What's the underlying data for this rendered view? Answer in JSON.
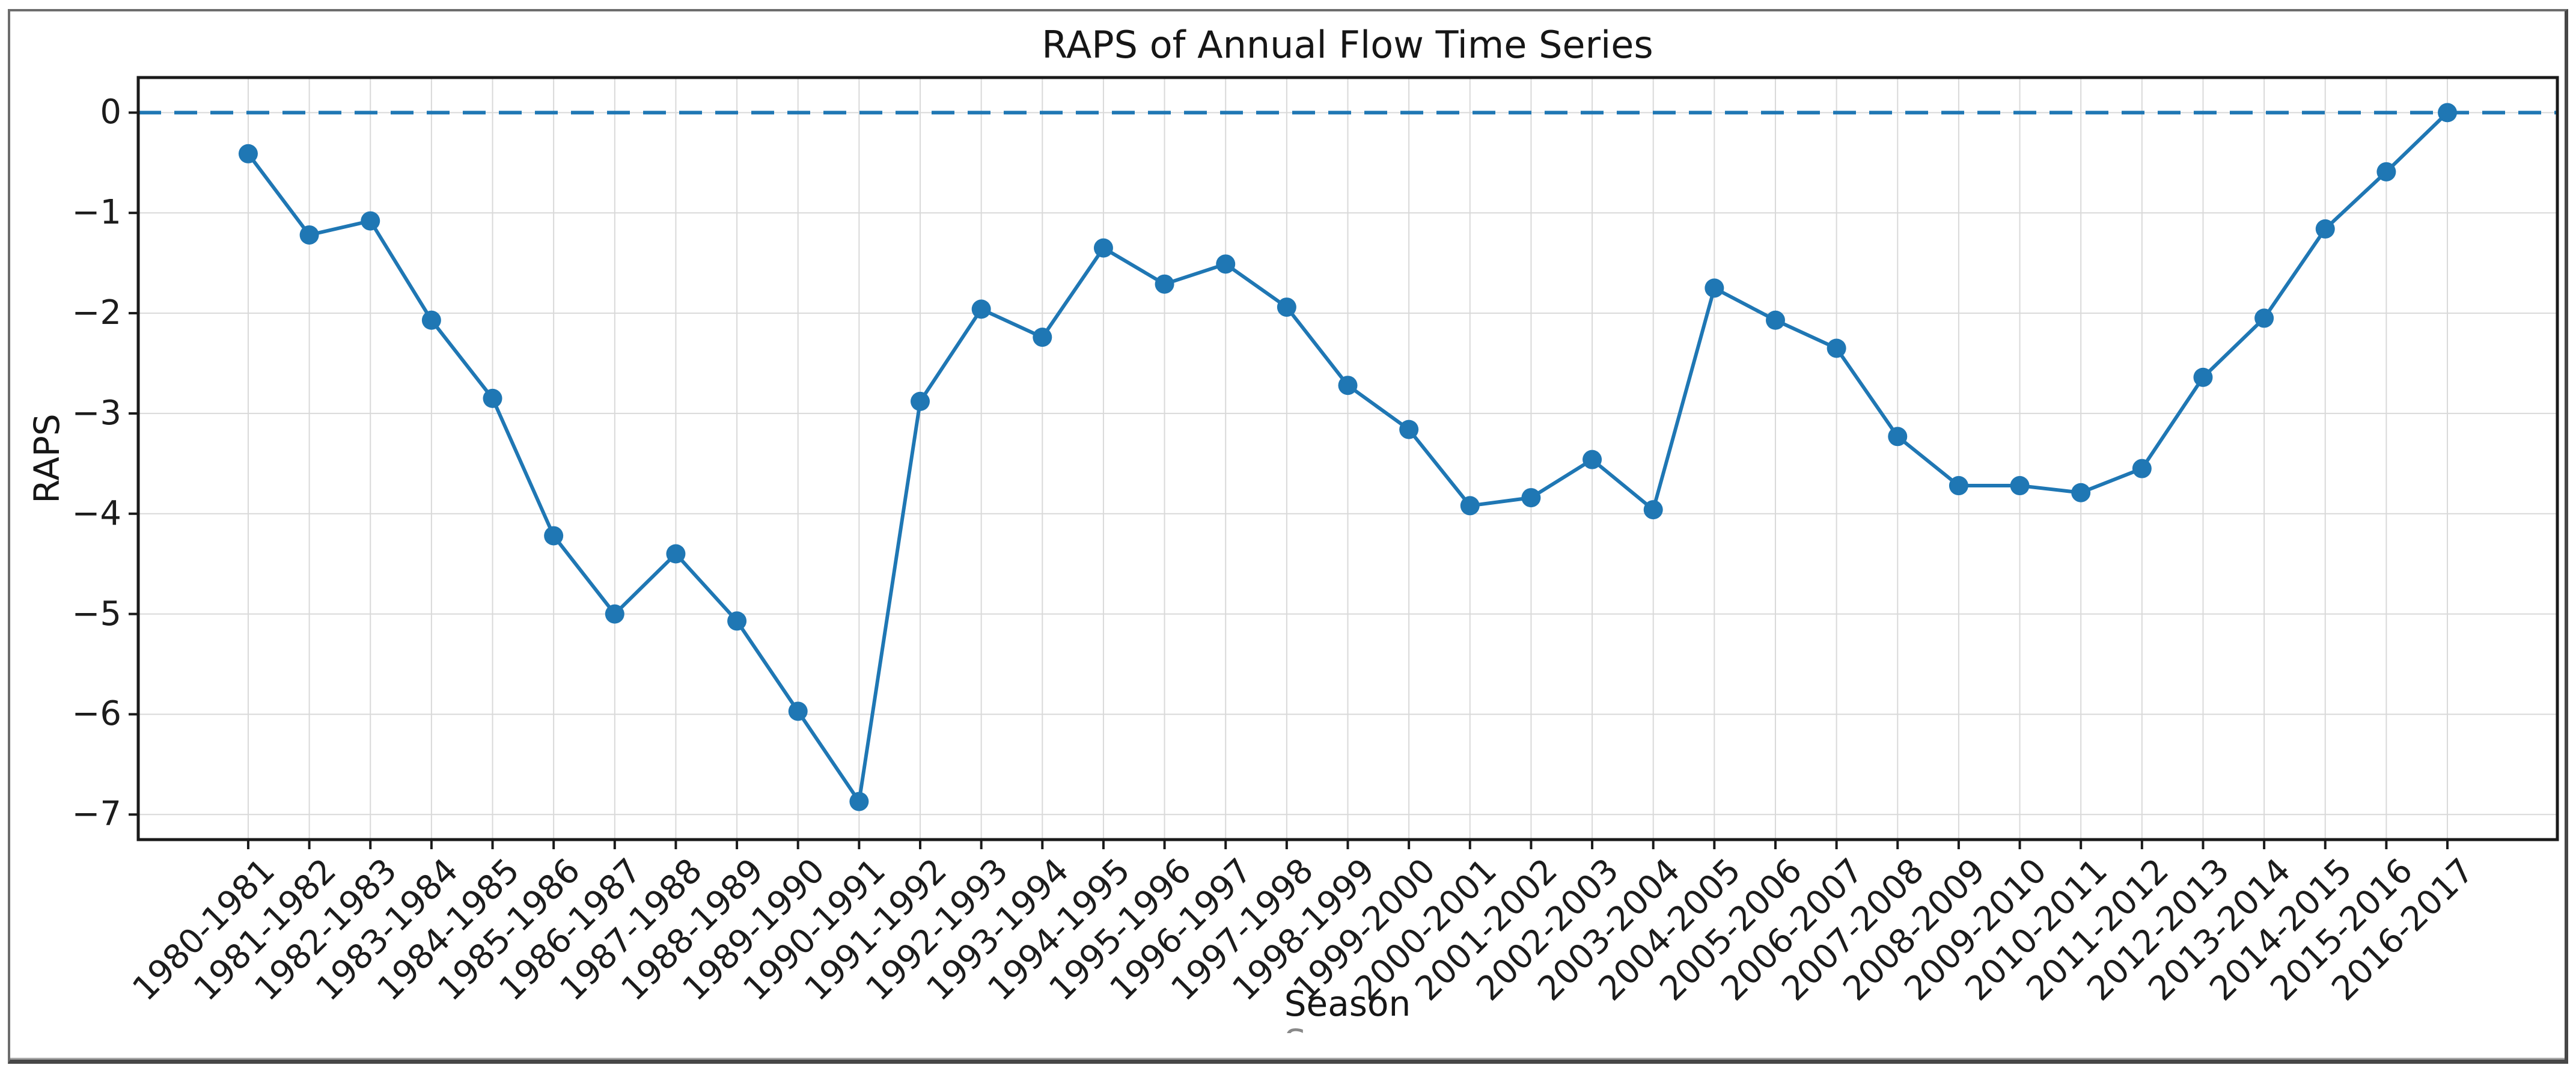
{
  "chart_data": {
    "type": "line",
    "title": "RAPS of Annual Flow Time Series",
    "xlabel": "Season",
    "ylabel": "RAPS",
    "categories": [
      "1980-1981",
      "1981-1982",
      "1982-1983",
      "1983-1984",
      "1984-1985",
      "1985-1986",
      "1986-1987",
      "1987-1988",
      "1988-1989",
      "1989-1990",
      "1990-1991",
      "1991-1992",
      "1992-1993",
      "1993-1994",
      "1994-1995",
      "1995-1996",
      "1996-1997",
      "1997-1998",
      "1998-1999",
      "1999-2000",
      "2000-2001",
      "2001-2002",
      "2002-2003",
      "2003-2004",
      "2004-2005",
      "2005-2006",
      "2006-2007",
      "2007-2008",
      "2008-2009",
      "2009-2010",
      "2010-2011",
      "2011-2012",
      "2012-2013",
      "2013-2014",
      "2014-2015",
      "2015-2016",
      "2016-2017"
    ],
    "values": [
      -0.41,
      -1.22,
      -1.08,
      -2.07,
      -2.85,
      -4.22,
      -5.0,
      -4.4,
      -5.07,
      -5.97,
      -6.87,
      -2.88,
      -1.96,
      -2.24,
      -1.35,
      -1.71,
      -1.51,
      -1.94,
      -2.72,
      -3.16,
      -3.92,
      -3.84,
      -3.46,
      -3.96,
      -1.75,
      -2.07,
      -2.35,
      -3.23,
      -3.72,
      -3.72,
      -3.79,
      -3.55,
      -2.64,
      -2.05,
      -1.16,
      -0.59,
      0.0
    ],
    "y_tick_labels": [
      "0",
      "−1",
      "−2",
      "−3",
      "−4",
      "−5",
      "−6",
      "−7"
    ],
    "y_tick_values": [
      0,
      -1,
      -2,
      -3,
      -4,
      -5,
      -6,
      -7
    ],
    "ylim": [
      -7.25,
      0.35
    ],
    "grid": true,
    "legend_position": "none",
    "line_color": "#1f77b4",
    "marker": "circle",
    "zero_line": {
      "y": 0,
      "style": "dashed",
      "color": "#1f77b4"
    },
    "grid_color": "#d9d9d9",
    "spine_color": "#1a1a1a",
    "text_color": "#1c1c1c",
    "background": "#ffffff"
  }
}
